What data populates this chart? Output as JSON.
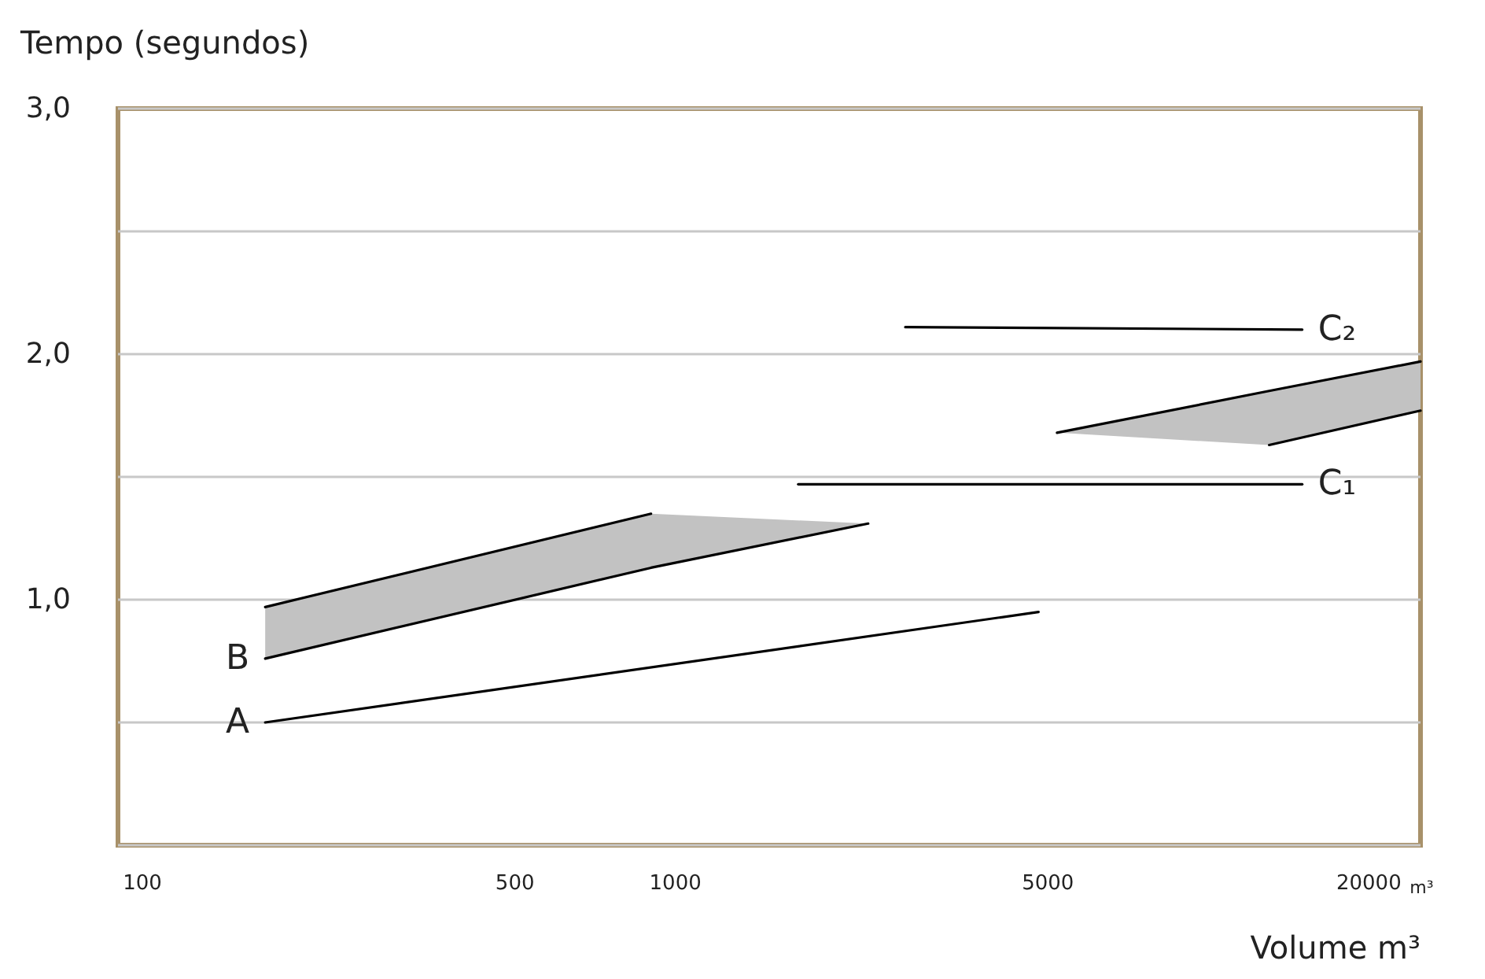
{
  "chart_data": {
    "type": "line",
    "xlabel": "Volume m³",
    "ylabel": "Tempo (segundos)",
    "log": "x",
    "xlim": [
      90,
      25000
    ],
    "xticks": [
      100,
      500,
      1000,
      5000,
      20000
    ],
    "ylim": [
      0,
      3
    ],
    "yticks": [
      {
        "value": 0.5,
        "label": null
      },
      {
        "value": 1.0,
        "label": "1,0"
      },
      {
        "value": 1.5,
        "label": null
      },
      {
        "value": 2.0,
        "label": "2,0"
      },
      {
        "value": 2.5,
        "label": null
      },
      {
        "value": 3.0,
        "label": "3,0"
      }
    ],
    "grid": "y",
    "marker": "none",
    "line_style": "solid",
    "series": [
      {
        "name": "A",
        "color": "#000000",
        "x": [
          170,
          4800
        ],
        "values": [
          0.5,
          0.95
        ]
      },
      {
        "name": "B",
        "color": "#000000",
        "x": [
          170,
          900,
          2300
        ],
        "values": [
          0.76,
          1.13,
          1.31
        ],
        "lower": [
          0.76,
          1.13,
          1.31
        ],
        "upper": [
          0.97,
          1.35,
          1.31
        ]
      },
      {
        "color": "#000000",
        "x": [
          170,
          900
        ],
        "values": [
          0.97,
          1.35
        ]
      },
      {
        "name": "C₁",
        "color": "#000000",
        "x": [
          1700,
          15000
        ],
        "values": [
          1.47,
          1.47
        ]
      },
      {
        "name": "C₂",
        "color": "#000000",
        "x": [
          2700,
          15000
        ],
        "values": [
          2.11,
          2.1
        ]
      },
      {
        "color": "#000000",
        "x": [
          5200,
          13000,
          25000
        ],
        "values": [
          1.68,
          1.85,
          1.97
        ],
        "lower": [
          1.68,
          1.63,
          1.77
        ],
        "upper": [
          1.68,
          1.85,
          1.97
        ]
      },
      {
        "color": "#000000",
        "x": [
          13000,
          25000
        ],
        "values": [
          1.63,
          1.77
        ]
      }
    ],
    "annotations": [
      "m³"
    ]
  }
}
